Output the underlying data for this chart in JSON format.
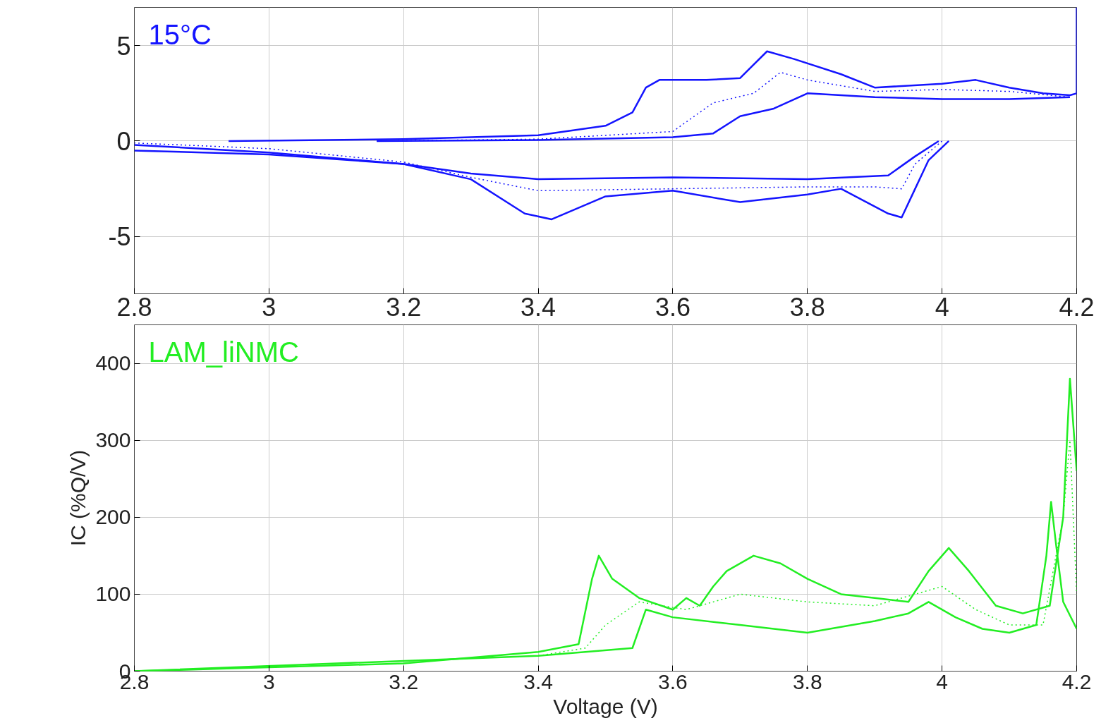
{
  "chart_data": [
    {
      "type": "line",
      "xlim": [
        2.8,
        4.2
      ],
      "xticks": [
        2.8,
        3,
        3.2,
        3.4,
        3.6,
        3.8,
        4,
        4.2
      ],
      "ylim": [
        -8,
        7
      ],
      "yticks": [
        -5,
        0,
        5
      ],
      "grid": true,
      "annotations": [
        "15°C"
      ],
      "series": [
        {
          "color": "#1414ff",
          "line_style": "solid",
          "x": [
            2.94,
            3.2,
            3.4,
            3.5,
            3.54,
            3.56,
            3.58,
            3.65,
            3.7,
            3.74,
            3.78,
            3.85,
            3.9,
            4.0,
            4.05,
            4.1,
            4.15,
            4.19,
            4.2,
            4.2
          ],
          "values": [
            0,
            0.1,
            0.3,
            0.8,
            1.5,
            2.8,
            3.2,
            3.2,
            3.3,
            4.7,
            4.3,
            3.5,
            2.8,
            3.0,
            3.2,
            2.8,
            2.5,
            2.4,
            2.5,
            7
          ]
        },
        {
          "color": "#1414ff",
          "line_style": "dotted",
          "x": [
            3.16,
            3.4,
            3.6,
            3.66,
            3.72,
            3.76,
            3.8,
            3.9,
            4.0,
            4.1,
            4.19
          ],
          "values": [
            0,
            0.1,
            0.5,
            2,
            2.5,
            3.6,
            3.2,
            2.6,
            2.7,
            2.6,
            2.3
          ]
        },
        {
          "color": "#1414ff",
          "line_style": "solid",
          "x": [
            3.16,
            3.4,
            3.6,
            3.66,
            3.7,
            3.75,
            3.8,
            3.9,
            4.0,
            4.1,
            4.19
          ],
          "values": [
            0,
            0.05,
            0.2,
            0.4,
            1.3,
            1.7,
            2.5,
            2.3,
            2.2,
            2.2,
            2.3
          ]
        },
        {
          "color": "#1414ff",
          "line_style": "solid",
          "x": [
            4.01,
            3.98,
            3.96,
            3.94,
            3.92,
            3.85,
            3.8,
            3.7,
            3.6,
            3.5,
            3.42,
            3.38,
            3.3,
            3.2,
            3.0,
            2.8
          ],
          "values": [
            0,
            -1,
            -2.5,
            -4.0,
            -3.8,
            -2.5,
            -2.8,
            -3.2,
            -2.6,
            -2.9,
            -4.1,
            -3.8,
            -2.0,
            -1.2,
            -0.7,
            -0.5
          ]
        },
        {
          "color": "#1414ff",
          "line_style": "dotted",
          "x": [
            4.0,
            3.96,
            3.94,
            3.9,
            3.8,
            3.6,
            3.4,
            3.3,
            3.2,
            3.0,
            2.8
          ],
          "values": [
            0,
            -1.2,
            -2.5,
            -2.4,
            -2.4,
            -2.5,
            -2.6,
            -1.9,
            -1.1,
            -0.4,
            -0.1
          ]
        },
        {
          "color": "#1414ff",
          "line_style": "solid",
          "x": [
            3.995,
            3.96,
            3.92,
            3.8,
            3.6,
            3.4,
            3.3,
            3.2,
            3.0,
            2.8
          ],
          "values": [
            0,
            -0.8,
            -1.8,
            -2.0,
            -1.9,
            -2.0,
            -1.7,
            -1.2,
            -0.6,
            -0.2
          ]
        }
      ]
    },
    {
      "type": "line",
      "xlabel": "Voltage (V)",
      "ylabel": "IC (%Q/V)",
      "xlim": [
        2.8,
        4.2
      ],
      "xticks": [
        2.8,
        3,
        3.2,
        3.4,
        3.6,
        3.8,
        4,
        4.2
      ],
      "ylim": [
        0,
        450
      ],
      "yticks": [
        0,
        100,
        200,
        300,
        400
      ],
      "grid": true,
      "annotations": [
        "LAM_liNMC"
      ],
      "series": [
        {
          "color": "#22ee22",
          "line_style": "solid",
          "x": [
            2.8,
            3.2,
            3.4,
            3.46,
            3.48,
            3.49,
            3.51,
            3.55,
            3.6,
            3.62,
            3.64,
            3.66,
            3.68,
            3.72,
            3.76,
            3.8,
            3.85,
            3.9,
            3.95,
            3.98,
            4.01,
            4.04,
            4.08,
            4.12,
            4.16,
            4.18,
            4.19,
            4.2
          ],
          "values": [
            0,
            10,
            25,
            35,
            120,
            150,
            120,
            95,
            80,
            95,
            85,
            110,
            130,
            150,
            140,
            120,
            100,
            95,
            90,
            130,
            160,
            130,
            85,
            75,
            85,
            200,
            380,
            260
          ]
        },
        {
          "color": "#22ee22",
          "line_style": "dotted",
          "x": [
            3.4,
            3.47,
            3.5,
            3.55,
            3.62,
            3.7,
            3.8,
            3.9,
            4.0,
            4.05,
            4.1,
            4.15,
            4.18,
            4.19,
            4.2
          ],
          "values": [
            20,
            30,
            60,
            90,
            80,
            100,
            90,
            85,
            110,
            80,
            60,
            60,
            200,
            300,
            100
          ]
        },
        {
          "color": "#22ee22",
          "line_style": "solid",
          "x": [
            2.8,
            3.4,
            3.54,
            3.56,
            3.6,
            3.7,
            3.8,
            3.9,
            3.95,
            3.98,
            4.02,
            4.06,
            4.1,
            4.14,
            4.155,
            4.162,
            4.17,
            4.18,
            4.2
          ],
          "values": [
            0,
            20,
            30,
            80,
            70,
            60,
            50,
            65,
            75,
            90,
            70,
            55,
            50,
            60,
            150,
            220,
            160,
            90,
            55
          ]
        }
      ]
    }
  ]
}
